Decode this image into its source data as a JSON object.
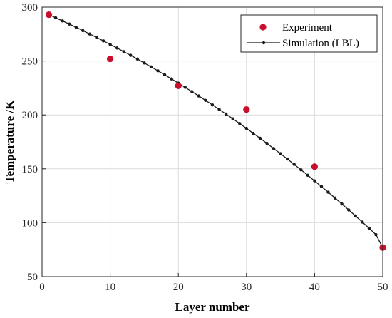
{
  "chart_data": {
    "type": "scatter",
    "title": "",
    "xlabel": "Layer number",
    "ylabel": "Temperature /K",
    "xlim": [
      0,
      50
    ],
    "ylim": [
      50,
      300
    ],
    "xticks": [
      "0",
      "10",
      "20",
      "30",
      "40",
      "50"
    ],
    "yticks": [
      "50",
      "100",
      "150",
      "200",
      "250",
      "300"
    ],
    "grid": true,
    "legend_position": "top-right",
    "series": [
      {
        "name": "Experiment",
        "kind": "scatter",
        "color": "#c8102e",
        "x": [
          1,
          10,
          20,
          30,
          40,
          50
        ],
        "y": [
          293,
          252,
          227,
          205,
          152,
          77
        ]
      },
      {
        "name": "Simulation (LBL)",
        "kind": "line-with-markers",
        "color": "#1a1a1a",
        "x": [
          1,
          2,
          3,
          4,
          5,
          6,
          7,
          8,
          9,
          10,
          11,
          12,
          13,
          14,
          15,
          16,
          17,
          18,
          19,
          20,
          21,
          22,
          23,
          24,
          25,
          26,
          27,
          28,
          29,
          30,
          31,
          32,
          33,
          34,
          35,
          36,
          37,
          38,
          39,
          40,
          41,
          42,
          43,
          44,
          45,
          46,
          47,
          48,
          49,
          50
        ],
        "y": [
          293,
          290.1,
          287.2,
          284.3,
          281.3,
          278.2,
          275.1,
          271.9,
          268.7,
          265.4,
          262.1,
          258.7,
          255.3,
          251.8,
          248.2,
          244.6,
          240.9,
          237.2,
          233.4,
          229.5,
          225.6,
          221.6,
          217.6,
          213.5,
          209.3,
          205.1,
          200.8,
          196.4,
          192,
          187.5,
          182.9,
          178.3,
          173.6,
          168.8,
          164,
          159.1,
          154.1,
          149.1,
          144,
          138.8,
          133.6,
          128.3,
          122.9,
          117.4,
          111.9,
          106.3,
          100.6,
          94.9,
          89,
          77
        ]
      }
    ]
  }
}
